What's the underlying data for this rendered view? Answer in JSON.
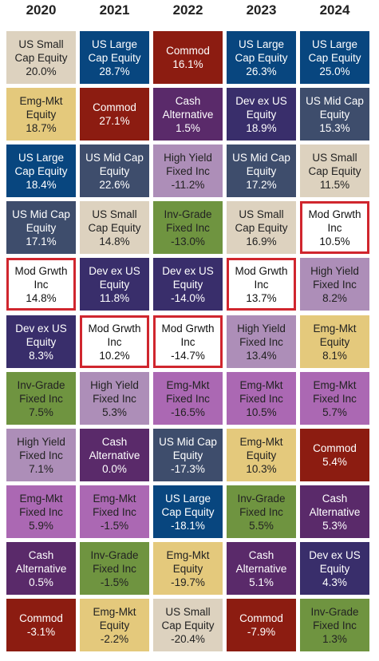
{
  "chart_data": {
    "type": "table",
    "years": [
      "2020",
      "2021",
      "2022",
      "2023",
      "2024"
    ],
    "colors": {
      "US Small Cap Equity": {
        "bg": "#ddd2bf",
        "fg": "#222222"
      },
      "US Large Cap Equity": {
        "bg": "#08467f",
        "fg": "#ffffff"
      },
      "US Mid Cap Equity": {
        "bg": "#3e4d6c",
        "fg": "#ffffff"
      },
      "Emg-Mkt Equity": {
        "bg": "#e4c97c",
        "fg": "#222222"
      },
      "Commod": {
        "bg": "#8c1c11",
        "fg": "#ffffff"
      },
      "Cash Alternative": {
        "bg": "#5a2a6a",
        "fg": "#ffffff"
      },
      "Dev ex US Equity": {
        "bg": "#392e6b",
        "fg": "#ffffff"
      },
      "High Yield Fixed Inc": {
        "bg": "#ad8eb8",
        "fg": "#222222"
      },
      "Inv-Grade Fixed Inc": {
        "bg": "#6f9440",
        "fg": "#222222"
      },
      "Emg-Mkt Fixed Inc": {
        "bg": "#ab68b3",
        "fg": "#222222"
      },
      "Mod Grwth Inc": {
        "bg": "#ffffff",
        "fg": "#111111"
      }
    },
    "columns": [
      [
        {
          "label": [
            "US Small",
            "Cap Equity"
          ],
          "key": "US Small Cap Equity",
          "value": "20.0%"
        },
        {
          "label": [
            "Emg-Mkt",
            "Equity"
          ],
          "key": "Emg-Mkt Equity",
          "value": "18.7%"
        },
        {
          "label": [
            "US Large",
            "Cap Equity"
          ],
          "key": "US Large Cap Equity",
          "value": "18.4%"
        },
        {
          "label": [
            "US Mid Cap",
            "Equity"
          ],
          "key": "US Mid Cap Equity",
          "value": "17.1%"
        },
        {
          "label": [
            "Mod Grwth",
            "Inc"
          ],
          "key": "Mod Grwth Inc",
          "value": "14.8%",
          "highlight": true
        },
        {
          "label": [
            "Dev ex US",
            "Equity"
          ],
          "key": "Dev ex US Equity",
          "value": "8.3%"
        },
        {
          "label": [
            "Inv-Grade",
            "Fixed Inc"
          ],
          "key": "Inv-Grade Fixed Inc",
          "value": "7.5%"
        },
        {
          "label": [
            "High Yield",
            "Fixed Inc"
          ],
          "key": "High Yield Fixed Inc",
          "value": "7.1%"
        },
        {
          "label": [
            "Emg-Mkt",
            "Fixed Inc"
          ],
          "key": "Emg-Mkt Fixed Inc",
          "value": "5.9%"
        },
        {
          "label": [
            "Cash",
            "Alternative"
          ],
          "key": "Cash Alternative",
          "value": "0.5%"
        },
        {
          "label": [
            "Commod"
          ],
          "key": "Commod",
          "value": "-3.1%"
        }
      ],
      [
        {
          "label": [
            "US Large",
            "Cap Equity"
          ],
          "key": "US Large Cap Equity",
          "value": "28.7%"
        },
        {
          "label": [
            "Commod"
          ],
          "key": "Commod",
          "value": "27.1%"
        },
        {
          "label": [
            "US Mid Cap",
            "Equity"
          ],
          "key": "US Mid Cap Equity",
          "value": "22.6%"
        },
        {
          "label": [
            "US Small",
            "Cap Equity"
          ],
          "key": "US Small Cap Equity",
          "value": "14.8%"
        },
        {
          "label": [
            "Dev ex US",
            "Equity"
          ],
          "key": "Dev ex US Equity",
          "value": "11.8%"
        },
        {
          "label": [
            "Mod Grwth",
            "Inc"
          ],
          "key": "Mod Grwth Inc",
          "value": "10.2%",
          "highlight": true
        },
        {
          "label": [
            "High Yield",
            "Fixed Inc"
          ],
          "key": "High Yield Fixed Inc",
          "value": "5.3%"
        },
        {
          "label": [
            "Cash",
            "Alternative"
          ],
          "key": "Cash Alternative",
          "value": "0.0%"
        },
        {
          "label": [
            "Emg-Mkt",
            "Fixed Inc"
          ],
          "key": "Emg-Mkt Fixed Inc",
          "value": "-1.5%"
        },
        {
          "label": [
            "Inv-Grade",
            "Fixed Inc"
          ],
          "key": "Inv-Grade Fixed Inc",
          "value": "-1.5%"
        },
        {
          "label": [
            "Emg-Mkt",
            "Equity"
          ],
          "key": "Emg-Mkt Equity",
          "value": "-2.2%"
        }
      ],
      [
        {
          "label": [
            "Commod"
          ],
          "key": "Commod",
          "value": "16.1%"
        },
        {
          "label": [
            "Cash",
            "Alternative"
          ],
          "key": "Cash Alternative",
          "value": "1.5%"
        },
        {
          "label": [
            "High Yield",
            "Fixed Inc"
          ],
          "key": "High Yield Fixed Inc",
          "value": "-11.2%"
        },
        {
          "label": [
            "Inv-Grade",
            "Fixed Inc"
          ],
          "key": "Inv-Grade Fixed Inc",
          "value": "-13.0%"
        },
        {
          "label": [
            "Dev ex US",
            "Equity"
          ],
          "key": "Dev ex US Equity",
          "value": "-14.0%"
        },
        {
          "label": [
            "Mod Grwth",
            "Inc"
          ],
          "key": "Mod Grwth Inc",
          "value": "-14.7%",
          "highlight": true
        },
        {
          "label": [
            "Emg-Mkt",
            "Fixed Inc"
          ],
          "key": "Emg-Mkt Fixed Inc",
          "value": "-16.5%"
        },
        {
          "label": [
            "US Mid Cap",
            "Equity"
          ],
          "key": "US Mid Cap Equity",
          "value": "-17.3%"
        },
        {
          "label": [
            "US Large",
            "Cap Equity"
          ],
          "key": "US Large Cap Equity",
          "value": "-18.1%"
        },
        {
          "label": [
            "Emg-Mkt",
            "Equity"
          ],
          "key": "Emg-Mkt Equity",
          "value": "-19.7%"
        },
        {
          "label": [
            "US Small",
            "Cap Equity"
          ],
          "key": "US Small Cap Equity",
          "value": "-20.4%"
        }
      ],
      [
        {
          "label": [
            "US Large",
            "Cap Equity"
          ],
          "key": "US Large Cap Equity",
          "value": "26.3%"
        },
        {
          "label": [
            "Dev ex US",
            "Equity"
          ],
          "key": "Dev ex US Equity",
          "value": "18.9%"
        },
        {
          "label": [
            "US Mid Cap",
            "Equity"
          ],
          "key": "US Mid Cap Equity",
          "value": "17.2%"
        },
        {
          "label": [
            "US Small",
            "Cap Equity"
          ],
          "key": "US Small Cap Equity",
          "value": "16.9%"
        },
        {
          "label": [
            "Mod Grwth",
            "Inc"
          ],
          "key": "Mod Grwth Inc",
          "value": "13.7%",
          "highlight": true
        },
        {
          "label": [
            "High Yield",
            "Fixed Inc"
          ],
          "key": "High Yield Fixed Inc",
          "value": "13.4%"
        },
        {
          "label": [
            "Emg-Mkt",
            "Fixed Inc"
          ],
          "key": "Emg-Mkt Fixed Inc",
          "value": "10.5%"
        },
        {
          "label": [
            "Emg-Mkt",
            "Equity"
          ],
          "key": "Emg-Mkt Equity",
          "value": "10.3%"
        },
        {
          "label": [
            "Inv-Grade",
            "Fixed Inc"
          ],
          "key": "Inv-Grade Fixed Inc",
          "value": "5.5%"
        },
        {
          "label": [
            "Cash",
            "Alternative"
          ],
          "key": "Cash Alternative",
          "value": "5.1%"
        },
        {
          "label": [
            "Commod"
          ],
          "key": "Commod",
          "value": "-7.9%"
        }
      ],
      [
        {
          "label": [
            "US Large",
            "Cap Equity"
          ],
          "key": "US Large Cap Equity",
          "value": "25.0%"
        },
        {
          "label": [
            "US Mid Cap",
            "Equity"
          ],
          "key": "US Mid Cap Equity",
          "value": "15.3%"
        },
        {
          "label": [
            "US Small",
            "Cap Equity"
          ],
          "key": "US Small Cap Equity",
          "value": "11.5%"
        },
        {
          "label": [
            "Mod Grwth",
            "Inc"
          ],
          "key": "Mod Grwth Inc",
          "value": "10.5%",
          "highlight": true
        },
        {
          "label": [
            "High Yield",
            "Fixed Inc"
          ],
          "key": "High Yield Fixed Inc",
          "value": "8.2%"
        },
        {
          "label": [
            "Emg-Mkt",
            "Equity"
          ],
          "key": "Emg-Mkt Equity",
          "value": "8.1%"
        },
        {
          "label": [
            "Emg-Mkt",
            "Fixed Inc"
          ],
          "key": "Emg-Mkt Fixed Inc",
          "value": "5.7%"
        },
        {
          "label": [
            "Commod"
          ],
          "key": "Commod",
          "value": "5.4%"
        },
        {
          "label": [
            "Cash",
            "Alternative"
          ],
          "key": "Cash Alternative",
          "value": "5.3%"
        },
        {
          "label": [
            "Dev ex US",
            "Equity"
          ],
          "key": "Dev ex US Equity",
          "value": "4.3%"
        },
        {
          "label": [
            "Inv-Grade",
            "Fixed Inc"
          ],
          "key": "Inv-Grade Fixed Inc",
          "value": "1.3%"
        }
      ]
    ]
  }
}
